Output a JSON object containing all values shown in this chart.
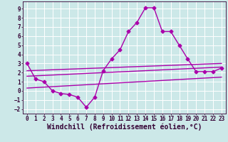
{
  "title": "",
  "xlabel": "Windchill (Refroidissement éolien,°C)",
  "xlim": [
    -0.5,
    23.5
  ],
  "ylim": [
    -2.5,
    9.8
  ],
  "yticks": [
    -2,
    -1,
    0,
    1,
    2,
    3,
    4,
    5,
    6,
    7,
    8,
    9
  ],
  "xticks": [
    0,
    1,
    2,
    3,
    4,
    5,
    6,
    7,
    8,
    9,
    10,
    11,
    12,
    13,
    14,
    15,
    16,
    17,
    18,
    19,
    20,
    21,
    22,
    23
  ],
  "background_color": "#cce8e8",
  "grid_color": "#ffffff",
  "line_color": "#aa00aa",
  "line_width": 1.0,
  "marker": "D",
  "marker_size": 2.5,
  "main_line_x": [
    0,
    1,
    2,
    3,
    4,
    5,
    6,
    7,
    8,
    9,
    10,
    11,
    12,
    13,
    14,
    15,
    16,
    17,
    18,
    19,
    20,
    21,
    22,
    23
  ],
  "main_line_y": [
    3.0,
    1.3,
    1.0,
    0.0,
    -0.3,
    -0.4,
    -0.7,
    -1.8,
    -0.7,
    2.2,
    3.5,
    4.5,
    6.5,
    7.5,
    9.1,
    9.1,
    6.5,
    6.5,
    5.0,
    3.5,
    2.1,
    2.1,
    2.1,
    2.5
  ],
  "line2_x": [
    0,
    23
  ],
  "line2_y": [
    2.2,
    3.0
  ],
  "line3_x": [
    0,
    23
  ],
  "line3_y": [
    1.6,
    2.6
  ],
  "line4_x": [
    0,
    23
  ],
  "line4_y": [
    0.3,
    1.5
  ],
  "tick_fontsize": 5.5,
  "label_fontsize": 7.0
}
